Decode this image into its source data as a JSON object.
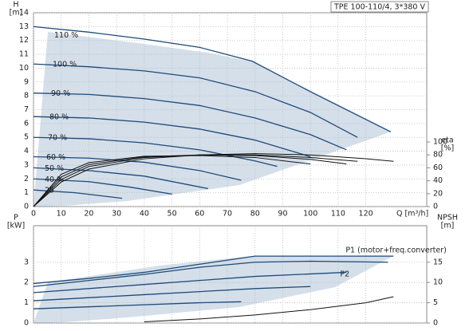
{
  "chart_data": [
    {
      "type": "line",
      "title": "TPE 100-110/4, 3*380 V",
      "y_label": "H",
      "y_unit": "[m]",
      "y2_label": "eta",
      "y2_unit": "[%]",
      "x_label": "Q [m³/h]",
      "xlim": [
        0,
        142
      ],
      "xticks": [
        0,
        10,
        20,
        30,
        40,
        50,
        60,
        70,
        80,
        90,
        100,
        110,
        120
      ],
      "ylim": [
        0,
        14
      ],
      "yticks": [
        0,
        1,
        2,
        3,
        4,
        5,
        6,
        7,
        8,
        9,
        10,
        11,
        12,
        13,
        14
      ],
      "y2lim": [
        0,
        300
      ],
      "y2ticks": [
        0,
        20,
        40,
        60,
        80,
        100
      ],
      "grid": true,
      "xtick_labels": true,
      "series_label": "start",
      "series": [
        {
          "name": "110 %",
          "color": "#1f4a78",
          "x": [
            0,
            20,
            40,
            60,
            79,
            100,
            129
          ],
          "values": [
            13.0,
            12.6,
            12.1,
            11.5,
            10.5,
            8.3,
            5.4
          ]
        },
        {
          "name": "100 %",
          "color": "#1f4a78",
          "x": [
            0,
            20,
            40,
            60,
            80,
            100,
            117
          ],
          "values": [
            10.3,
            10.1,
            9.8,
            9.3,
            8.3,
            6.8,
            5.0
          ]
        },
        {
          "name": "90 %",
          "color": "#1f4a78",
          "x": [
            0,
            20,
            40,
            60,
            80,
            100,
            113
          ],
          "values": [
            8.2,
            8.1,
            7.8,
            7.3,
            6.4,
            5.2,
            4.1
          ]
        },
        {
          "name": "80 %",
          "color": "#1f4a78",
          "x": [
            0,
            20,
            40,
            60,
            80,
            100
          ],
          "values": [
            6.5,
            6.4,
            6.1,
            5.6,
            4.8,
            3.6
          ]
        },
        {
          "name": "70 %",
          "color": "#1f4a78",
          "x": [
            0,
            20,
            40,
            60,
            80,
            88
          ],
          "values": [
            5.0,
            4.9,
            4.6,
            4.1,
            3.3,
            2.9
          ]
        },
        {
          "name": "60 %",
          "color": "#1f4a78",
          "x": [
            0,
            20,
            40,
            60,
            75
          ],
          "values": [
            3.6,
            3.5,
            3.2,
            2.6,
            1.9
          ]
        },
        {
          "name": "50 %",
          "color": "#1f4a78",
          "x": [
            0,
            20,
            40,
            63
          ],
          "values": [
            2.8,
            2.6,
            2.2,
            1.3
          ]
        },
        {
          "name": "40 %",
          "color": "#1f4a78",
          "x": [
            0,
            20,
            35,
            50
          ],
          "values": [
            2.0,
            1.8,
            1.4,
            0.9
          ]
        },
        {
          "name": "25",
          "color": "#1f4a78",
          "x": [
            0,
            15,
            32
          ],
          "values": [
            1.2,
            1.0,
            0.6
          ]
        },
        {
          "color": "#111111",
          "axis": "y2",
          "x": [
            0,
            10,
            20,
            40,
            60,
            80,
            100,
            120,
            130
          ],
          "values": [
            0,
            38,
            58,
            74,
            80,
            82,
            80,
            74,
            70
          ]
        },
        {
          "color": "#111111",
          "axis": "y2",
          "x": [
            0,
            10,
            20,
            40,
            60,
            80,
            100,
            117
          ],
          "values": [
            0,
            42,
            62,
            76,
            80,
            80,
            76,
            70
          ]
        },
        {
          "color": "#111111",
          "axis": "y2",
          "x": [
            0,
            10,
            20,
            40,
            60,
            80,
            100,
            113
          ],
          "values": [
            0,
            46,
            65,
            77,
            80,
            79,
            73,
            66
          ]
        },
        {
          "color": "#111111",
          "axis": "y2",
          "x": [
            0,
            10,
            20,
            40,
            60,
            80,
            100
          ],
          "values": [
            0,
            50,
            68,
            78,
            79,
            76,
            66
          ]
        }
      ]
    },
    {
      "type": "line",
      "y_label": "P",
      "y_unit": "[kW]",
      "y2_label": "NPSH",
      "y2_unit": "[m]",
      "xlim": [
        0,
        142
      ],
      "xticks": [
        0,
        10,
        20,
        30,
        40,
        50,
        60,
        70,
        80,
        90,
        100,
        110,
        120
      ],
      "ylim": [
        0,
        4.8
      ],
      "yticks": [
        0,
        1,
        2,
        3
      ],
      "y2lim": [
        0,
        24
      ],
      "y2ticks": [
        0,
        5,
        10,
        15
      ],
      "grid": true,
      "xtick_labels": false,
      "series_label": "end",
      "series": [
        {
          "name": "P1 (motor+freq.converter)",
          "color": "#1f4a78",
          "x": [
            0,
            20,
            40,
            60,
            80,
            100,
            130
          ],
          "values": [
            1.95,
            2.2,
            2.5,
            2.9,
            3.3,
            3.3,
            3.3
          ]
        },
        {
          "name": "P2",
          "color": "#1f4a78",
          "x": [
            0,
            20,
            40,
            60,
            80,
            100,
            128
          ],
          "values": [
            1.8,
            2.1,
            2.4,
            2.75,
            3.0,
            3.05,
            3.0
          ]
        },
        {
          "color": "#1f4a78",
          "x": [
            0,
            40,
            80,
            113
          ],
          "values": [
            1.5,
            1.9,
            2.3,
            2.5
          ]
        },
        {
          "color": "#1f4a78",
          "x": [
            0,
            40,
            80,
            100
          ],
          "values": [
            1.1,
            1.4,
            1.7,
            1.8
          ]
        },
        {
          "color": "#1f4a78",
          "x": [
            0,
            30,
            60,
            75
          ],
          "values": [
            0.7,
            0.85,
            1.0,
            1.05
          ]
        },
        {
          "color": "#111111",
          "axis": "y2",
          "x": [
            40,
            60,
            80,
            100,
            120,
            130
          ],
          "values": [
            0.3,
            1.0,
            2.0,
            3.3,
            5.0,
            6.5
          ]
        }
      ]
    }
  ]
}
